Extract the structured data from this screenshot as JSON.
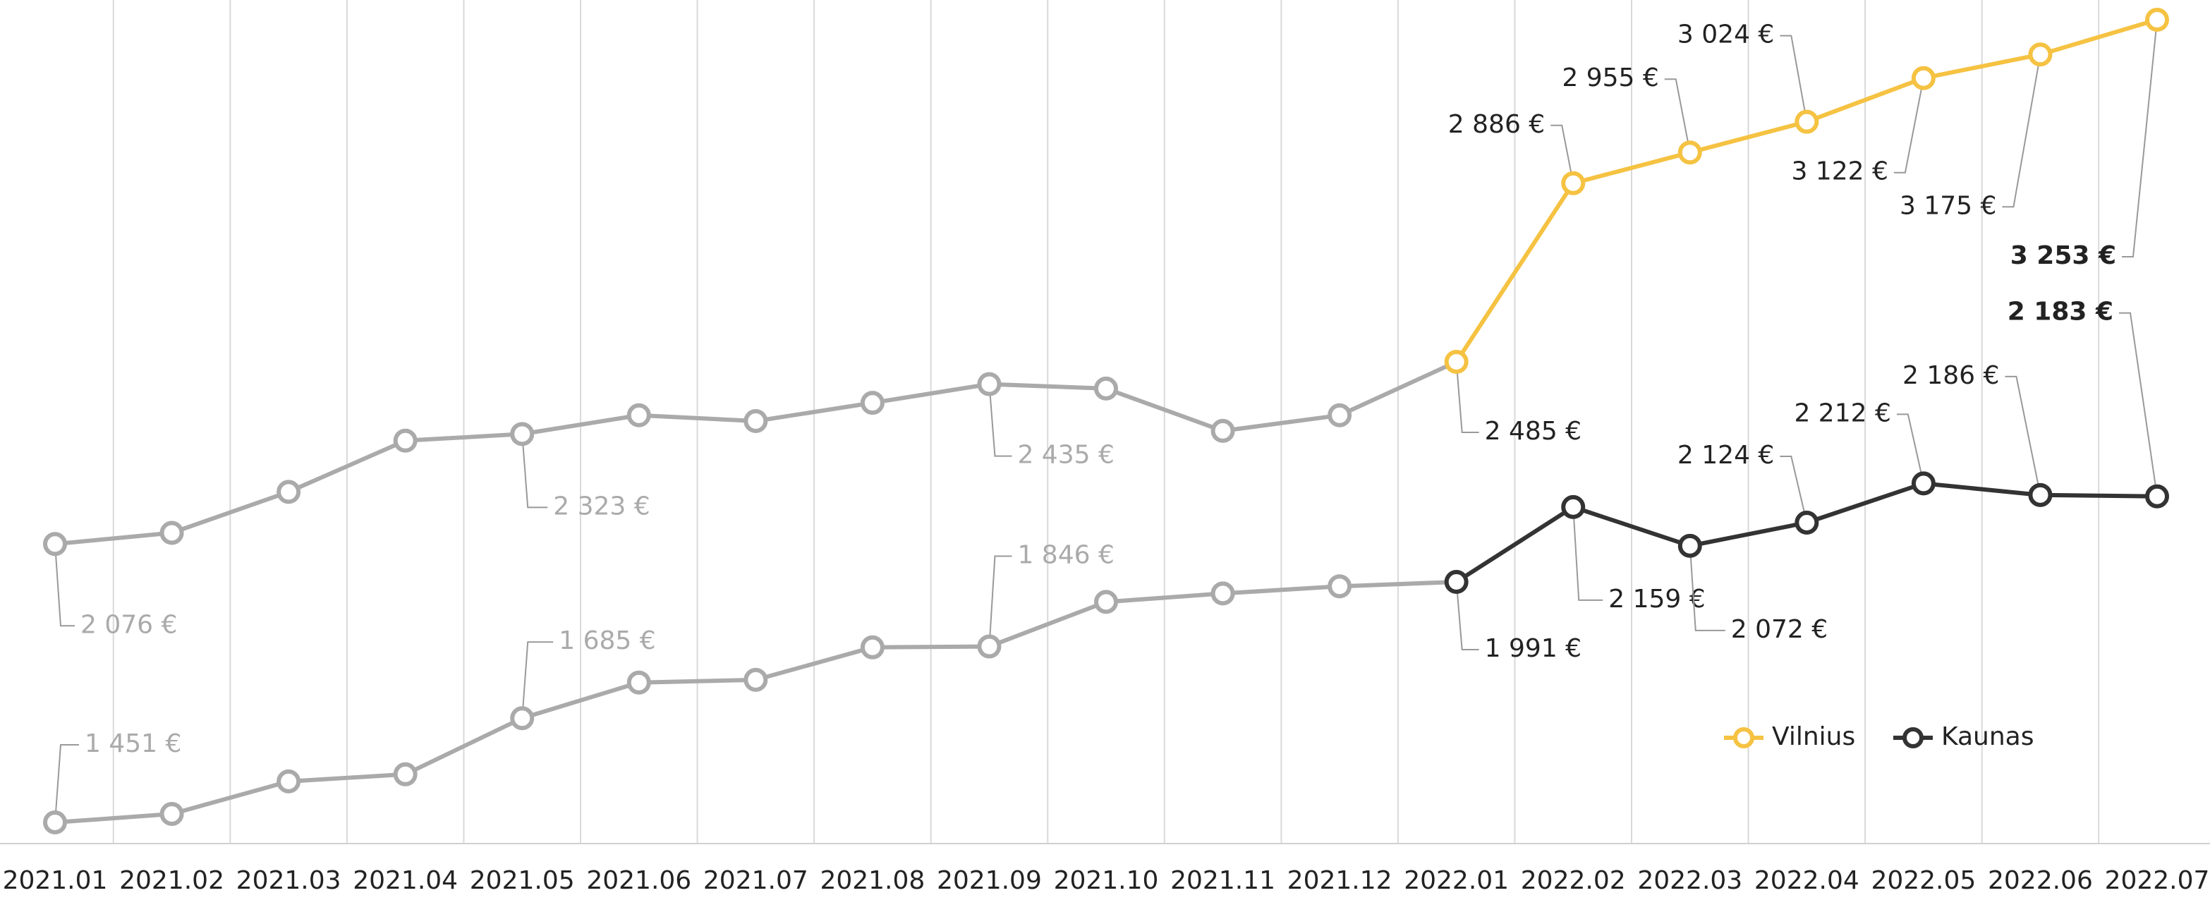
{
  "chart_data": {
    "type": "line",
    "categories": [
      "2021.01",
      "2021.02",
      "2021.03",
      "2021.04",
      "2021.05",
      "2021.06",
      "2021.07",
      "2021.08",
      "2021.09",
      "2021.10",
      "2021.11",
      "2021.12",
      "2022.01",
      "2022.02",
      "2022.03",
      "2022.04",
      "2022.05",
      "2022.06",
      "2022.07"
    ],
    "highlight_from": "2022.01",
    "muted_color": "#aaaaaa",
    "legend": "lower right",
    "grid": true,
    "series": [
      {
        "name": "Vilnius",
        "color": "#f5c242",
        "values": [
          2076,
          2101,
          2193,
          2308,
          2323,
          2365,
          2352,
          2393,
          2435,
          2425,
          2330,
          2365,
          2485,
          2886,
          2955,
          3024,
          3122,
          3175,
          3253
        ],
        "value_labels": [
          "2 076 €",
          null,
          null,
          null,
          "2 323 €",
          null,
          null,
          null,
          "2 435 €",
          null,
          null,
          null,
          "2 485 €",
          "2 886 €",
          "2 955 €",
          "3 024 €",
          "3 122 €",
          "3 175 €",
          "3 253 €"
        ]
      },
      {
        "name": "Kaunas",
        "color": "#333333",
        "values": [
          1451,
          1470,
          1543,
          1559,
          1685,
          1765,
          1771,
          1844,
          1846,
          1946,
          1965,
          1981,
          1991,
          2159,
          2072,
          2124,
          2212,
          2186,
          2183
        ],
        "value_labels": [
          "1 451 €",
          null,
          null,
          null,
          "1 685 €",
          null,
          null,
          null,
          "1 846 €",
          null,
          null,
          null,
          "1 991 €",
          "2 159 €",
          "2 072 €",
          "2 124 €",
          "2 212 €",
          "2 186 €",
          "2 183 €"
        ]
      }
    ]
  }
}
